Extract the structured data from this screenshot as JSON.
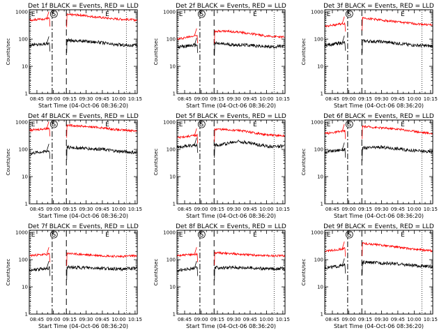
{
  "chart_data": {
    "type": "line",
    "layout": "3x3 grid of panels",
    "x_tick_labels": [
      "08:45",
      "09:00",
      "09:15",
      "09:30",
      "09:45",
      "10:00",
      "10:15"
    ],
    "x_range_minutes_from_0845": [
      -7,
      92
    ],
    "xlabel": "Start Time (04-Oct-06 08:36:20)",
    "ylabel": "Counts/sec",
    "yscale": "log",
    "ylim": [
      1,
      1200
    ],
    "y_tick_labels": [
      "1",
      "10",
      "100",
      "1000"
    ],
    "colors": {
      "events": "#000000",
      "lld": "#ff0000"
    },
    "markers": {
      "labels": [
        "E",
        "S",
        "E"
      ],
      "positions_minutes": [
        -6,
        13,
        62
      ],
      "dashdot_line_minutes": 14,
      "dashed_line_minutes": 27,
      "dotted_line_minutes": [
        -6,
        82
      ]
    },
    "panels": [
      {
        "title": "Det 1f BLACK = Events, RED = LLD",
        "series": [
          {
            "name": "Events",
            "values": [
              [
                -7,
                60
              ],
              [
                12,
                70
              ],
              [
                28,
                90
              ],
              [
                40,
                86
              ],
              [
                55,
                78
              ],
              [
                70,
                63
              ],
              [
                92,
                58
              ]
            ]
          },
          {
            "name": "LLD",
            "values": [
              [
                -7,
                500
              ],
              [
                12,
                580
              ],
              [
                28,
                790
              ],
              [
                40,
                770
              ],
              [
                50,
                680
              ],
              [
                70,
                560
              ],
              [
                92,
                500
              ]
            ]
          }
        ]
      },
      {
        "title": "Det 2f BLACK = Events, RED = LLD",
        "series": [
          {
            "name": "Events",
            "values": [
              [
                -7,
                50
              ],
              [
                12,
                62
              ],
              [
                28,
                70
              ],
              [
                45,
                62
              ],
              [
                60,
                60
              ],
              [
                75,
                52
              ],
              [
                92,
                55
              ]
            ]
          },
          {
            "name": "LLD",
            "values": [
              [
                -7,
                100
              ],
              [
                12,
                140
              ],
              [
                28,
                200
              ],
              [
                40,
                195
              ],
              [
                50,
                180
              ],
              [
                60,
                160
              ],
              [
                75,
                130
              ],
              [
                92,
                118
              ]
            ]
          }
        ]
      },
      {
        "title": "Det 3f BLACK = Events, RED = LLD",
        "series": [
          {
            "name": "Events",
            "values": [
              [
                -7,
                60
              ],
              [
                12,
                75
              ],
              [
                28,
                85
              ],
              [
                45,
                80
              ],
              [
                60,
                70
              ],
              [
                75,
                60
              ],
              [
                92,
                55
              ]
            ]
          },
          {
            "name": "LLD",
            "values": [
              [
                -7,
                300
              ],
              [
                12,
                380
              ],
              [
                28,
                610
              ],
              [
                45,
                500
              ],
              [
                60,
                430
              ],
              [
                75,
                370
              ],
              [
                92,
                330
              ]
            ]
          }
        ]
      },
      {
        "title": "Det 4f BLACK = Events, RED = LLD",
        "series": [
          {
            "name": "Events",
            "values": [
              [
                -7,
                70
              ],
              [
                12,
                90
              ],
              [
                28,
                120
              ],
              [
                45,
                110
              ],
              [
                60,
                100
              ],
              [
                75,
                85
              ],
              [
                92,
                75
              ]
            ]
          },
          {
            "name": "LLD",
            "values": [
              [
                -7,
                500
              ],
              [
                12,
                600
              ],
              [
                28,
                780
              ],
              [
                45,
                700
              ],
              [
                60,
                620
              ],
              [
                75,
                520
              ],
              [
                92,
                480
              ]
            ]
          }
        ]
      },
      {
        "title": "Det 5f BLACK = Events, RED = LLD",
        "series": [
          {
            "name": "Events",
            "values": [
              [
                -7,
                120
              ],
              [
                12,
                150
              ],
              [
                28,
                140
              ],
              [
                40,
                170
              ],
              [
                50,
                200
              ],
              [
                60,
                170
              ],
              [
                75,
                130
              ],
              [
                92,
                130
              ]
            ]
          },
          {
            "name": "LLD",
            "values": [
              [
                -7,
                270
              ],
              [
                12,
                330
              ],
              [
                28,
                560
              ],
              [
                40,
                520
              ],
              [
                50,
                500
              ],
              [
                60,
                430
              ],
              [
                75,
                340
              ],
              [
                92,
                310
              ]
            ]
          }
        ]
      },
      {
        "title": "Det 6f BLACK = Events, RED = LLD",
        "series": [
          {
            "name": "Events",
            "values": [
              [
                -7,
                80
              ],
              [
                12,
                100
              ],
              [
                28,
                110
              ],
              [
                45,
                120
              ],
              [
                60,
                105
              ],
              [
                75,
                90
              ],
              [
                92,
                80
              ]
            ]
          },
          {
            "name": "LLD",
            "values": [
              [
                -7,
                380
              ],
              [
                12,
                480
              ],
              [
                28,
                700
              ],
              [
                45,
                620
              ],
              [
                60,
                560
              ],
              [
                75,
                460
              ],
              [
                92,
                380
              ]
            ]
          }
        ]
      },
      {
        "title": "Det 7f BLACK = Events, RED = LLD",
        "series": [
          {
            "name": "Events",
            "values": [
              [
                -7,
                40
              ],
              [
                12,
                50
              ],
              [
                28,
                52
              ],
              [
                45,
                50
              ],
              [
                60,
                48
              ],
              [
                75,
                45
              ],
              [
                92,
                48
              ]
            ]
          },
          {
            "name": "LLD",
            "values": [
              [
                -7,
                140
              ],
              [
                12,
                160
              ],
              [
                28,
                170
              ],
              [
                45,
                150
              ],
              [
                60,
                140
              ],
              [
                75,
                130
              ],
              [
                92,
                140
              ]
            ]
          }
        ]
      },
      {
        "title": "Det 8f BLACK = Events, RED = LLD",
        "series": [
          {
            "name": "Events",
            "values": [
              [
                -7,
                40
              ],
              [
                12,
                50
              ],
              [
                28,
                50
              ],
              [
                45,
                52
              ],
              [
                60,
                50
              ],
              [
                75,
                46
              ],
              [
                92,
                48
              ]
            ]
          },
          {
            "name": "LLD",
            "values": [
              [
                -7,
                140
              ],
              [
                12,
                160
              ],
              [
                28,
                180
              ],
              [
                45,
                165
              ],
              [
                60,
                150
              ],
              [
                75,
                140
              ],
              [
                92,
                140
              ]
            ]
          }
        ]
      },
      {
        "title": "Det 9f BLACK = Events, RED = LLD",
        "series": [
          {
            "name": "Events",
            "values": [
              [
                -7,
                50
              ],
              [
                12,
                62
              ],
              [
                28,
                80
              ],
              [
                45,
                75
              ],
              [
                60,
                70
              ],
              [
                75,
                60
              ],
              [
                92,
                55
              ]
            ]
          },
          {
            "name": "LLD",
            "values": [
              [
                -7,
                200
              ],
              [
                12,
                260
              ],
              [
                28,
                400
              ],
              [
                45,
                340
              ],
              [
                60,
                290
              ],
              [
                75,
                240
              ],
              [
                92,
                210
              ]
            ]
          }
        ]
      }
    ]
  }
}
